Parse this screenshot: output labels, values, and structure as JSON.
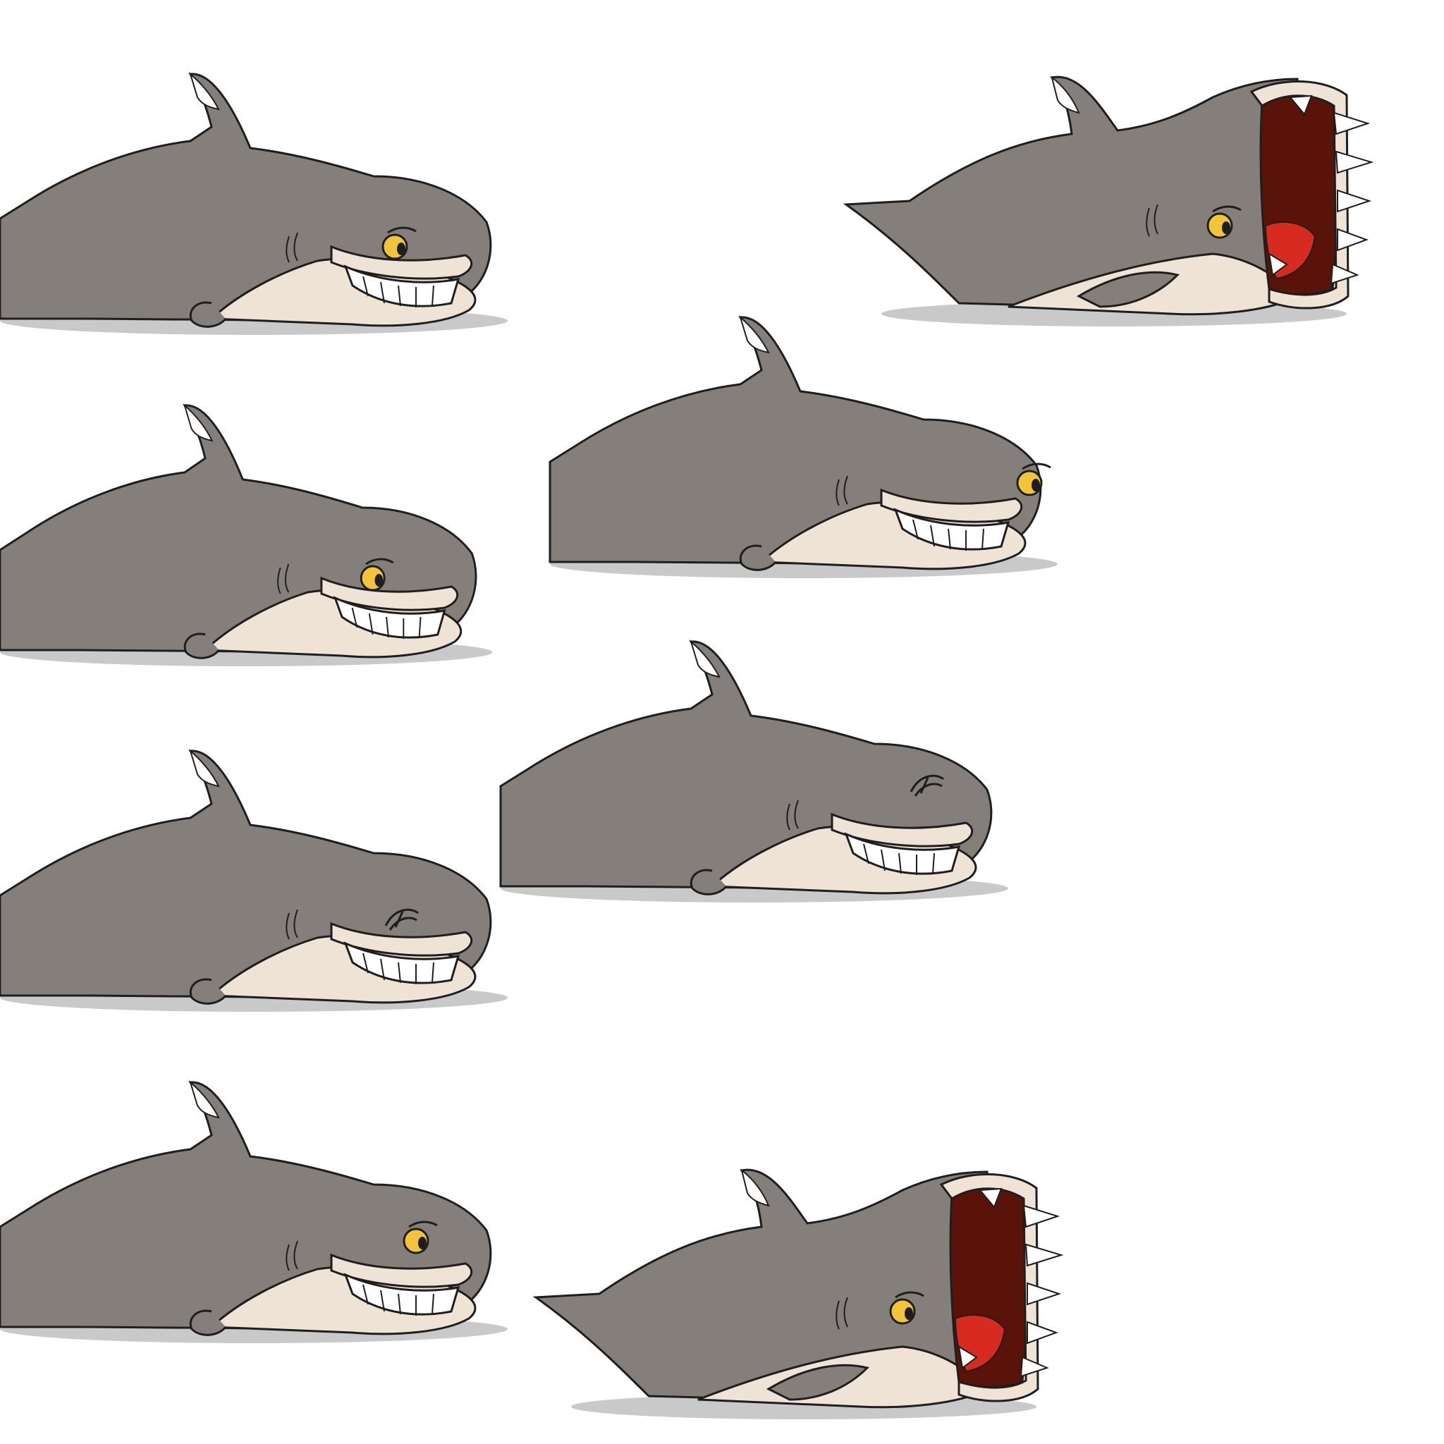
{
  "sheet": {
    "kind": "sprite-sheet",
    "subject": "cartoon shark",
    "background": "#ffffff"
  },
  "colors": {
    "body": "#857f7b",
    "belly": "#efe3d6",
    "outline": "#1e1e1e",
    "shadow": "#c9c9c9",
    "eye": "#f2c43a",
    "mouth": "#5a1308",
    "tongue": "#d82b1f",
    "teeth": "#ffffff"
  },
  "frames": [
    {
      "id": "grin-1",
      "pose": "grin",
      "eye": "open"
    },
    {
      "id": "grin-2",
      "pose": "grin",
      "eye": "open"
    },
    {
      "id": "grin-3",
      "pose": "grin",
      "eye": "closed"
    },
    {
      "id": "grin-wide",
      "pose": "wide-grin",
      "eye": "open"
    },
    {
      "id": "open-jaws-top",
      "pose": "open-mouth",
      "eye": "open"
    },
    {
      "id": "grin-4",
      "pose": "grin",
      "eye": "open"
    },
    {
      "id": "grin-5",
      "pose": "grin",
      "eye": "closed"
    },
    {
      "id": "open-jaws-bottom",
      "pose": "open-mouth",
      "eye": "open"
    }
  ]
}
